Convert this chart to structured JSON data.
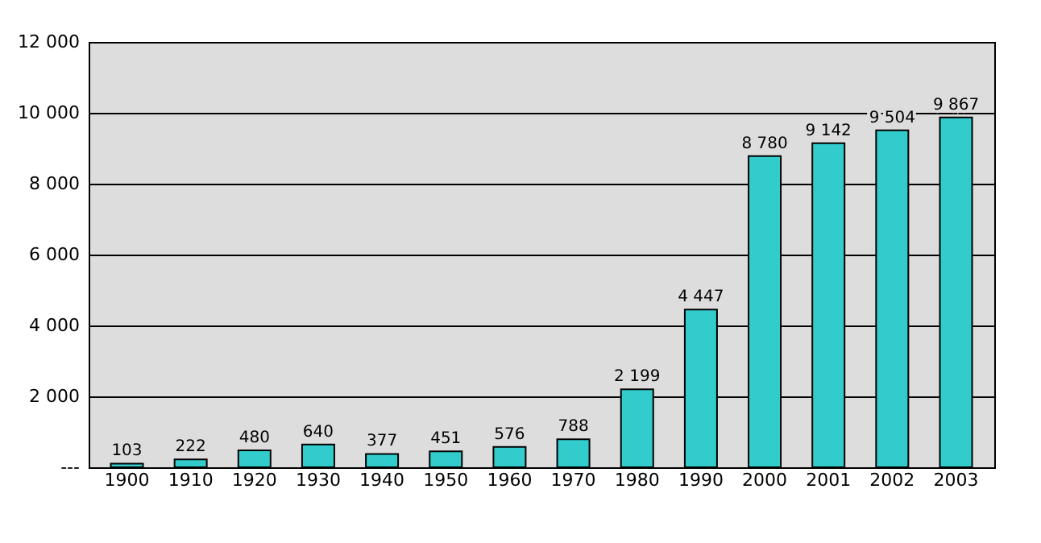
{
  "chart_data": {
    "type": "bar",
    "categories": [
      "1900",
      "1910",
      "1920",
      "1930",
      "1940",
      "1950",
      "1960",
      "1970",
      "1980",
      "1990",
      "2000",
      "2001",
      "2002",
      "2003"
    ],
    "values": [
      103,
      222,
      480,
      640,
      377,
      451,
      576,
      788,
      2199,
      4447,
      8780,
      9142,
      9504,
      9867
    ],
    "value_labels": [
      "103",
      "222",
      "480",
      "640",
      "377",
      "451",
      "576",
      "788",
      "2 199",
      "4 447",
      "8 780",
      "9 142",
      "9 504",
      "9 867"
    ],
    "color": "#33cccc",
    "ylim": [
      0,
      12000
    ],
    "yticks": [
      {
        "value": 0,
        "label": "---"
      },
      {
        "value": 2000,
        "label": "2 000"
      },
      {
        "value": 4000,
        "label": "4 000"
      },
      {
        "value": 6000,
        "label": "6 000"
      },
      {
        "value": 8000,
        "label": "8 000"
      },
      {
        "value": 10000,
        "label": "10 000"
      },
      {
        "value": 12000,
        "label": "12 000"
      }
    ],
    "grid": "y",
    "legend": false
  }
}
